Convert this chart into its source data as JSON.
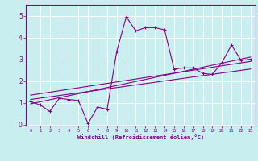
{
  "title": "",
  "xlabel": "Windchill (Refroidissement éolien,°C)",
  "background_color": "#c8eef0",
  "grid_color": "#ffffff",
  "line_color": "#880088",
  "xlim": [
    -0.5,
    23.5
  ],
  "ylim": [
    -0.05,
    5.5
  ],
  "xticks": [
    0,
    1,
    2,
    3,
    4,
    5,
    6,
    7,
    8,
    9,
    10,
    11,
    12,
    13,
    14,
    15,
    16,
    17,
    18,
    19,
    20,
    21,
    22,
    23
  ],
  "yticks": [
    0,
    1,
    2,
    3,
    4,
    5
  ],
  "scatter_x": [
    0,
    1,
    2,
    3,
    4,
    5,
    6,
    7,
    8,
    9,
    10,
    11,
    12,
    13,
    14,
    15,
    16,
    17,
    18,
    19,
    20,
    21,
    22,
    23
  ],
  "scatter_y": [
    1.05,
    0.9,
    0.6,
    1.2,
    1.15,
    1.1,
    0.05,
    0.8,
    0.7,
    3.35,
    4.95,
    4.3,
    4.45,
    4.45,
    4.35,
    2.55,
    2.6,
    2.6,
    2.35,
    2.3,
    2.85,
    3.65,
    2.95,
    3.0
  ],
  "reg_lines": [
    {
      "x0": 0,
      "x1": 23,
      "y0": 0.95,
      "y1": 3.1
    },
    {
      "x0": 0,
      "x1": 23,
      "y0": 1.15,
      "y1": 2.55
    },
    {
      "x0": 0,
      "x1": 23,
      "y0": 1.35,
      "y1": 2.9
    }
  ]
}
